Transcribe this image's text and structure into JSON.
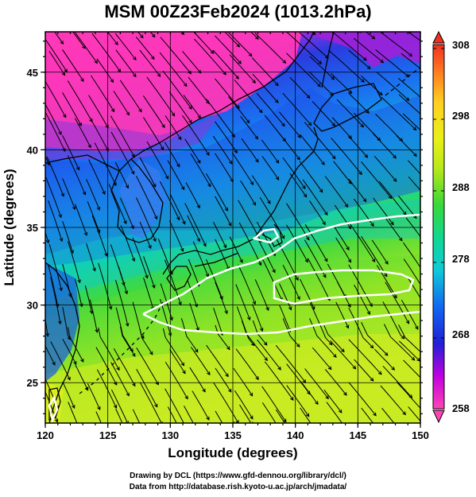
{
  "title": "MSM 00Z23Feb2024 (1013.2hPa)",
  "credits": {
    "line1": "Drawing by DCL (https://www.gfd-dennou.org/library/dcl/)",
    "line2": "Data from http://database.rish.kyoto-u.ac.jp/arch/jmadata/"
  },
  "map": {
    "xlabel": "Longitude (degrees)",
    "ylabel": "Latitude  (degrees)",
    "xlim": [
      120,
      150
    ],
    "ylim": [
      22.4,
      47.6
    ],
    "xticks": [
      120,
      125,
      130,
      135,
      140,
      145,
      150
    ],
    "xtick_labels": [
      "120",
      "125",
      "130",
      "135",
      "140",
      "145",
      "150"
    ],
    "yticks": [
      25,
      30,
      35,
      40,
      45
    ],
    "ytick_labels": [
      "25",
      "30",
      "35",
      "40",
      "45"
    ],
    "grid": true,
    "field": "temperature shading with wind streamlines, white contour (freezing line)"
  },
  "colorbar": {
    "min": 258,
    "max": 308,
    "labels": [
      "308",
      "298",
      "288",
      "278",
      "268",
      "258"
    ],
    "stops": [
      "#ff44b4",
      "#c000e0",
      "#2020d8",
      "#1068f0",
      "#10c8d8",
      "#10d890",
      "#38d838",
      "#b8e818",
      "#e8f018",
      "#ffd020",
      "#ff8020",
      "#f03020"
    ]
  }
}
